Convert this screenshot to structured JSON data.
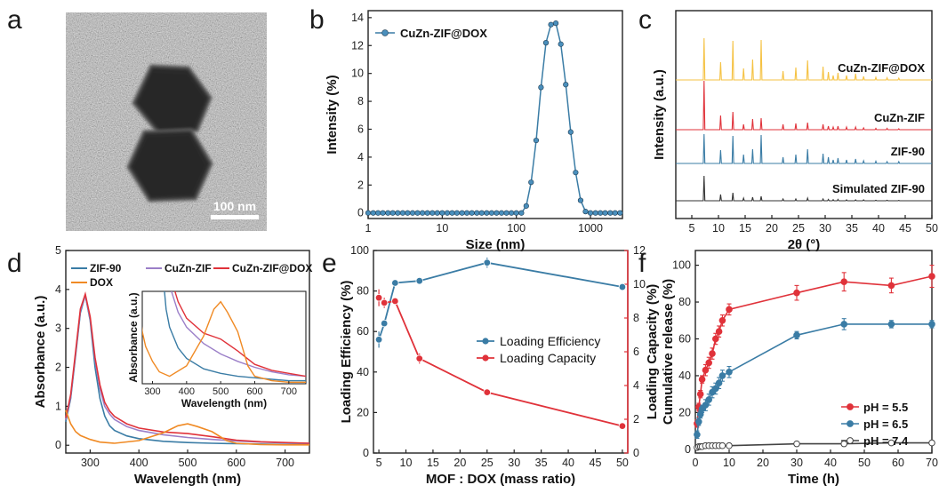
{
  "panel_labels": [
    "a",
    "b",
    "c",
    "d",
    "e",
    "f"
  ],
  "chart_data": [
    {
      "panel": "a",
      "type": "image",
      "scale_bar": "100 nm"
    },
    {
      "panel": "b",
      "type": "line",
      "xlabel": "Size (nm)",
      "ylabel": "Intensity (%)",
      "x_scale": "log",
      "xlim": [
        1,
        2700
      ],
      "ylim": [
        -0.4,
        14.5
      ],
      "xticks": [
        "1",
        "10",
        "100",
        "1000"
      ],
      "yticks": [
        0,
        2,
        4,
        6,
        8,
        10,
        12,
        14
      ],
      "legend": "top-left",
      "color": "#3a7ca5",
      "series": [
        {
          "name": "CuZn-ZIF@DOX",
          "x": [
            1.0,
            1.17,
            1.36,
            1.58,
            1.85,
            2.15,
            2.51,
            2.93,
            3.41,
            3.98,
            4.64,
            5.41,
            6.31,
            7.36,
            8.58,
            10.0,
            11.7,
            13.6,
            15.8,
            18.5,
            21.5,
            25.1,
            29.3,
            34.1,
            39.8,
            46.4,
            54.1,
            63.1,
            73.6,
            85.8,
            100,
            117,
            136,
            158,
            185,
            215,
            251,
            293,
            341,
            398,
            464,
            541,
            631,
            736,
            858,
            1000,
            1170,
            1360,
            1580,
            1850,
            2150,
            2510
          ],
          "y": [
            0,
            0,
            0,
            0,
            0,
            0,
            0,
            0,
            0,
            0,
            0,
            0,
            0,
            0,
            0,
            0,
            0,
            0,
            0,
            0,
            0,
            0,
            0,
            0,
            0,
            0,
            0,
            0,
            0,
            0,
            0,
            0,
            0.5,
            2.2,
            5.2,
            9.0,
            12.2,
            13.5,
            13.6,
            12.1,
            9.2,
            5.8,
            2.9,
            0.9,
            0.1,
            0,
            0,
            0,
            0,
            0,
            0,
            0
          ]
        }
      ]
    },
    {
      "panel": "c",
      "type": "line",
      "xlabel": "2θ (°)",
      "ylabel": "Intensity (a.u.)",
      "xlim": [
        2,
        50
      ],
      "xticks": [
        5,
        10,
        15,
        20,
        25,
        30,
        35,
        40,
        45,
        50
      ],
      "peak_positions": [
        7.3,
        10.4,
        12.7,
        14.7,
        16.4,
        18.0,
        22.1,
        24.5,
        26.7,
        29.6,
        30.6,
        31.5,
        32.4,
        34.0,
        35.7,
        37.2,
        39.5,
        41.6,
        43.8
      ],
      "series": [
        {
          "name": "Simulated ZIF-90",
          "color": "#333333",
          "intensities": [
            28,
            7,
            9,
            3,
            4,
            5,
            2,
            2,
            3,
            2,
            1.5,
            1.2,
            1.5,
            1,
            1,
            1,
            0.6,
            0.6,
            0.4
          ]
        },
        {
          "name": "ZIF-90",
          "color": "#3a7ca5",
          "intensities": [
            33,
            15,
            31,
            10,
            16,
            32,
            7,
            10,
            16,
            11,
            7,
            4,
            6,
            4,
            5,
            3,
            2.5,
            2,
            2
          ]
        },
        {
          "name": "CuZn-ZIF",
          "color": "#e0323a",
          "intensities": [
            55,
            16,
            20,
            6,
            12,
            13,
            6,
            7,
            8,
            6,
            4,
            3,
            4,
            3,
            3,
            2,
            1.5,
            1.5,
            1
          ]
        },
        {
          "name": "CuZn-ZIF@DOX",
          "color": "#f5c243",
          "intensities": [
            47,
            20,
            44,
            13,
            23,
            45,
            10,
            14,
            22,
            15,
            9,
            5,
            8,
            5,
            7,
            4,
            3,
            2.5,
            2
          ]
        }
      ]
    },
    {
      "panel": "d",
      "type": "line",
      "xlabel": "Wavelength (nm)",
      "ylabel": "Absorbance (a.u.)",
      "xlim": [
        250,
        750
      ],
      "ylim": [
        -0.2,
        5
      ],
      "xticks": [
        300,
        400,
        500,
        600,
        700
      ],
      "yticks": [
        0,
        1,
        2,
        3,
        4,
        5
      ],
      "legend": "top",
      "series": [
        {
          "name": "ZIF-90",
          "color": "#3a7ca5",
          "x": [
            250,
            260,
            270,
            280,
            290,
            300,
            310,
            320,
            330,
            340,
            350,
            375,
            400,
            450,
            500,
            550,
            600,
            650,
            700,
            750
          ],
          "y": [
            0.6,
            1.2,
            2.3,
            3.4,
            3.85,
            3.2,
            2.0,
            1.2,
            0.75,
            0.5,
            0.38,
            0.24,
            0.17,
            0.1,
            0.07,
            0.05,
            0.04,
            0.03,
            0.02,
            0.02
          ]
        },
        {
          "name": "CuZn-ZIF",
          "color": "#9b7fc8",
          "x": [
            250,
            260,
            270,
            280,
            290,
            300,
            310,
            320,
            330,
            340,
            350,
            375,
            400,
            450,
            500,
            550,
            600,
            650,
            700,
            750
          ],
          "y": [
            0.65,
            1.25,
            2.35,
            3.45,
            3.85,
            3.25,
            2.2,
            1.45,
            1.0,
            0.8,
            0.66,
            0.48,
            0.38,
            0.27,
            0.2,
            0.15,
            0.11,
            0.08,
            0.06,
            0.05
          ]
        },
        {
          "name": "CuZn-ZIF@DOX",
          "color": "#e0323a",
          "x": [
            250,
            260,
            270,
            280,
            290,
            300,
            310,
            320,
            330,
            340,
            350,
            375,
            400,
            450,
            500,
            550,
            600,
            650,
            700,
            750
          ],
          "y": [
            0.7,
            1.3,
            2.4,
            3.5,
            3.88,
            3.3,
            2.25,
            1.55,
            1.1,
            0.88,
            0.74,
            0.55,
            0.44,
            0.34,
            0.3,
            0.22,
            0.13,
            0.09,
            0.07,
            0.05
          ]
        },
        {
          "name": "DOX",
          "color": "#f08a24",
          "x": [
            250,
            260,
            270,
            280,
            290,
            300,
            320,
            350,
            400,
            450,
            480,
            500,
            520,
            550,
            580,
            600,
            650,
            700,
            750
          ],
          "y": [
            0.9,
            0.55,
            0.35,
            0.25,
            0.2,
            0.15,
            0.08,
            0.05,
            0.12,
            0.32,
            0.5,
            0.55,
            0.48,
            0.35,
            0.12,
            0.05,
            0.02,
            0.01,
            0.01
          ]
        }
      ],
      "inset": {
        "xlabel": "Wavelength (nm)",
        "ylabel": "Absorbance (a.u.)",
        "xlim": [
          270,
          750
        ],
        "xticks": [
          300,
          400,
          500,
          600,
          700
        ]
      }
    },
    {
      "panel": "e",
      "type": "line",
      "xlabel": "MOF : DOX (mass ratio)",
      "ylabel": "Loading Efficiency (%)",
      "ylabel_right": "Loading Capacity (%)",
      "xlim": [
        4,
        51
      ],
      "ylim": [
        0,
        100
      ],
      "ylim_right": [
        0,
        12
      ],
      "xticks": [
        5,
        10,
        15,
        20,
        25,
        30,
        35,
        40,
        45,
        50
      ],
      "yticks": [
        0,
        20,
        40,
        60,
        80,
        100
      ],
      "yticks_right": [
        0,
        2,
        4,
        6,
        8,
        10,
        12
      ],
      "legend": "center-right",
      "series": [
        {
          "name": "Loading Efficiency",
          "color": "#3a7ca5",
          "axis": "left",
          "x": [
            5,
            6,
            8,
            12.5,
            25,
            50
          ],
          "y": [
            56,
            64,
            84,
            85,
            94,
            82
          ],
          "err": [
            4,
            0,
            1,
            0,
            2.5,
            1
          ]
        },
        {
          "name": "Loading Capacity",
          "color": "#e0323a",
          "axis": "right",
          "x": [
            5,
            6,
            8,
            12.5,
            25,
            50
          ],
          "y": [
            9.2,
            8.9,
            9.0,
            5.6,
            3.6,
            1.6
          ],
          "err": [
            0.5,
            0.3,
            0,
            0.3,
            0,
            0
          ]
        }
      ]
    },
    {
      "panel": "f",
      "type": "line",
      "xlabel": "Time (h)",
      "ylabel": "Loading Capacity (%)",
      "ylabel2": "Cumulative release (%)",
      "xlim": [
        0,
        70
      ],
      "ylim": [
        -2,
        108
      ],
      "xticks": [
        0,
        10,
        20,
        30,
        40,
        50,
        60,
        70
      ],
      "yticks": [
        0,
        20,
        40,
        60,
        80,
        100
      ],
      "legend": "bottom-right",
      "series": [
        {
          "name": "pH = 5.5",
          "color": "#e0323a",
          "x": [
            0.5,
            1,
            1.5,
            2,
            3,
            4,
            5,
            6,
            7,
            8,
            10,
            30,
            44,
            58,
            70
          ],
          "y": [
            14,
            23,
            30,
            38,
            43,
            47,
            52,
            60,
            64,
            70,
            76,
            85,
            91,
            89,
            94
          ],
          "err": [
            2,
            2,
            2,
            2,
            3,
            3,
            3,
            3,
            3,
            3,
            3,
            4,
            5,
            4,
            6
          ]
        },
        {
          "name": "pH = 6.5",
          "color": "#3a7ca5",
          "x": [
            0.5,
            1,
            1.5,
            2,
            3,
            4,
            5,
            6,
            7,
            8,
            10,
            30,
            44,
            58,
            70
          ],
          "y": [
            8,
            15,
            19,
            22,
            24,
            27,
            31,
            33,
            36,
            40,
            42,
            62,
            68,
            68,
            68
          ],
          "err": [
            2,
            2,
            2,
            2,
            3,
            3,
            3,
            3,
            3,
            3,
            3,
            2,
            3,
            2,
            2
          ]
        },
        {
          "name": "pH = 7.4",
          "color": "#444444",
          "x": [
            0.5,
            1,
            1.5,
            2,
            3,
            4,
            5,
            6,
            7,
            8,
            10,
            30,
            44,
            58,
            70
          ],
          "y": [
            1,
            1.5,
            1.5,
            1.5,
            2,
            2,
            2,
            2,
            2,
            2,
            2,
            3,
            3,
            3.5,
            3.5
          ],
          "err": [
            0,
            0,
            0,
            0,
            0,
            0,
            0,
            0,
            0,
            0,
            0,
            0,
            0,
            0,
            0
          ]
        }
      ]
    }
  ]
}
